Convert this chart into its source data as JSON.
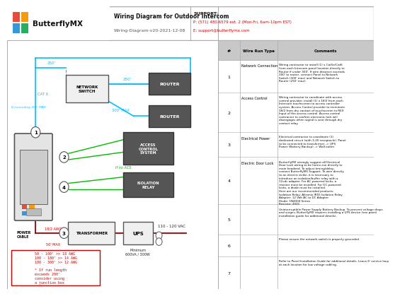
{
  "title": "Wiring Diagram for Outdoor Intercom",
  "subtitle": "Wiring-Diagram-v20-2021-12-08",
  "support_line1": "SUPPORT:",
  "support_line2": "P: (571) 480.6579 ext. 2 (Mon-Fri, 6am-10pm EST)",
  "support_line3": "E: support@butterflymx.com",
  "bg_color": "#ffffff",
  "wire_cyan": "#00bfff",
  "wire_green": "#00bb00",
  "wire_red": "#cc0000",
  "wire_dark_red": "#990000",
  "text_red": "#cc0000",
  "text_cyan": "#00bfff",
  "logo_colors": [
    "#e74c3c",
    "#f39c12",
    "#3498db",
    "#27ae60"
  ],
  "table_rows": [
    {
      "num": "1",
      "type": "Network Connection",
      "comment": "Wiring contractor to install (1) x Cat5e/Cat6\nfrom each Intercom panel location directly to\nRouter if under 300'. If wire distance exceeds\n300' to router, connect Panel to Network\nSwitch (300' max) and Network Switch to\nRouter (250' max)."
    },
    {
      "num": "2",
      "type": "Access Control",
      "comment": "Wiring contractor to coordinate with access\ncontrol provider, install (1) x 18/2 from each\nIntercom touchscreen to access controller\nsystem. Access Control provider to terminate\n18/2 from dry contact of touchscreen to REX\nInput of the access control. Access control\ncontractor to confirm electronic lock will\ndisengages when signal is sent through dry\ncontact relay."
    },
    {
      "num": "3",
      "type": "Electrical Power",
      "comment": "Electrical contractor to coordinate (1)\ndedicated circuit (with 3-20 receptacle). Panel\nto be connected to transformer -> UPS\nPower (Battery Backup) -> Wall outlet"
    },
    {
      "num": "4",
      "type": "Electric Door Lock",
      "comment": "ButterflyMX strongly suggest all Electrical\nDoor Lock wiring to be home-run directly to\nmain headend. To adjust timing/delay,\ncontact ButterflyMX Support. To wire directly\nto an electric strike, it is necessary to\nintroduce an isolation/buffer relay with a\n12vdc adapter. For AC-powered locks, a\nresistor must be installed. For DC-powered\nlocks, a diode must be installed.\nHere are our recommended products:\nIsolation Relay: Altronix IR55 Isolation Relay\nAdapter: 12 Volt AC to DC Adapter\nDiode: 1N4004 Series\nResistor: 4501"
    },
    {
      "num": "5",
      "type": "",
      "comment": "Uninterruptible Power Supply Battery Backup. To prevent voltage drops\nand surges, ButterflyMX requires installing a UPS device (see panel\ninstallation guide for additional details)."
    },
    {
      "num": "6",
      "type": "",
      "comment": "Please ensure the network switch is properly grounded."
    },
    {
      "num": "7",
      "type": "",
      "comment": "Refer to Panel Installation Guide for additional details. Leave 6' service loop\nat each location for low voltage cabling."
    }
  ],
  "awg_lines": [
    "50 - 100' >> 18 AWG",
    "100 - 180' >> 14 AWG",
    "180 - 300' >> 12 AWG",
    "",
    "* If run length",
    "exceeds 200'",
    "consider using",
    "a junction box"
  ]
}
